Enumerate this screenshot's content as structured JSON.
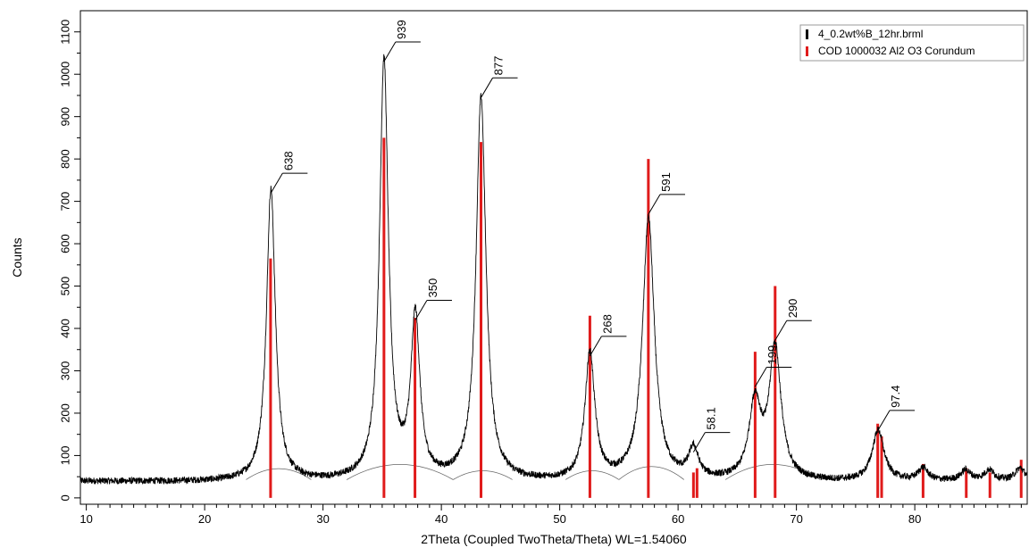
{
  "chart_data": {
    "type": "line",
    "title": "",
    "xlabel": "2Theta (Coupled TwoTheta/Theta) WL=1.54060",
    "ylabel": "Counts",
    "xlim": [
      9.5,
      89.5
    ],
    "ylim": [
      -15,
      1150
    ],
    "x_ticks": [
      10,
      20,
      30,
      40,
      50,
      60,
      70,
      80
    ],
    "y_ticks": [
      0,
      100,
      200,
      300,
      400,
      500,
      600,
      700,
      800,
      900,
      1000,
      1100
    ],
    "grid": false,
    "legend_position": "top-right",
    "series": [
      {
        "name": "4_0.2wt%B_12hr.brml",
        "color": "#000000",
        "style": "line",
        "baseline": 35,
        "peaks": [
          {
            "x": 25.6,
            "height": 690,
            "width": 0.45
          },
          {
            "x": 35.15,
            "height": 990,
            "width": 0.45
          },
          {
            "x": 37.8,
            "height": 380,
            "width": 0.45
          },
          {
            "x": 43.35,
            "height": 905,
            "width": 0.5
          },
          {
            "x": 52.55,
            "height": 300,
            "width": 0.5
          },
          {
            "x": 57.5,
            "height": 620,
            "width": 0.6
          },
          {
            "x": 61.3,
            "height": 70,
            "width": 0.5
          },
          {
            "x": 66.5,
            "height": 180,
            "width": 0.6
          },
          {
            "x": 68.2,
            "height": 310,
            "width": 0.6
          },
          {
            "x": 76.9,
            "height": 120,
            "width": 0.6
          },
          {
            "x": 80.7,
            "height": 30,
            "width": 0.5
          },
          {
            "x": 84.3,
            "height": 25,
            "width": 0.5
          },
          {
            "x": 86.3,
            "height": 25,
            "width": 0.5
          },
          {
            "x": 88.9,
            "height": 30,
            "width": 0.5
          }
        ]
      },
      {
        "name": "COD 1000032 Al2 O3 Corundum",
        "color": "#e01b1b",
        "style": "sticks",
        "x": [
          25.57,
          35.15,
          37.77,
          43.35,
          52.55,
          57.49,
          61.3,
          61.6,
          66.51,
          68.2,
          76.87,
          77.2,
          80.7,
          84.35,
          86.35,
          88.99
        ],
        "y": [
          565,
          850,
          425,
          840,
          430,
          800,
          60,
          70,
          345,
          500,
          175,
          145,
          80,
          70,
          60,
          90
        ]
      }
    ],
    "background_arcs": [
      {
        "x": [
          23.5,
          29
        ],
        "peak": 65
      },
      {
        "x": [
          32,
          41
        ],
        "peak": 75
      },
      {
        "x": [
          41,
          46
        ],
        "peak": 60
      },
      {
        "x": [
          50.5,
          55
        ],
        "peak": 60
      },
      {
        "x": [
          55,
          60.5
        ],
        "peak": 70
      },
      {
        "x": [
          64,
          72
        ],
        "peak": 75
      }
    ],
    "peak_labels": [
      {
        "x": 25.6,
        "y": 720,
        "text": "638"
      },
      {
        "x": 35.15,
        "y": 1030,
        "text": "939"
      },
      {
        "x": 37.8,
        "y": 420,
        "text": "350"
      },
      {
        "x": 43.35,
        "y": 945,
        "text": "877"
      },
      {
        "x": 52.55,
        "y": 335,
        "text": "268"
      },
      {
        "x": 57.5,
        "y": 670,
        "text": "591"
      },
      {
        "x": 61.3,
        "y": 108,
        "text": "58.1"
      },
      {
        "x": 66.5,
        "y": 262,
        "text": "199"
      },
      {
        "x": 68.2,
        "y": 372,
        "text": "290"
      },
      {
        "x": 76.9,
        "y": 160,
        "text": "97.4"
      }
    ]
  }
}
